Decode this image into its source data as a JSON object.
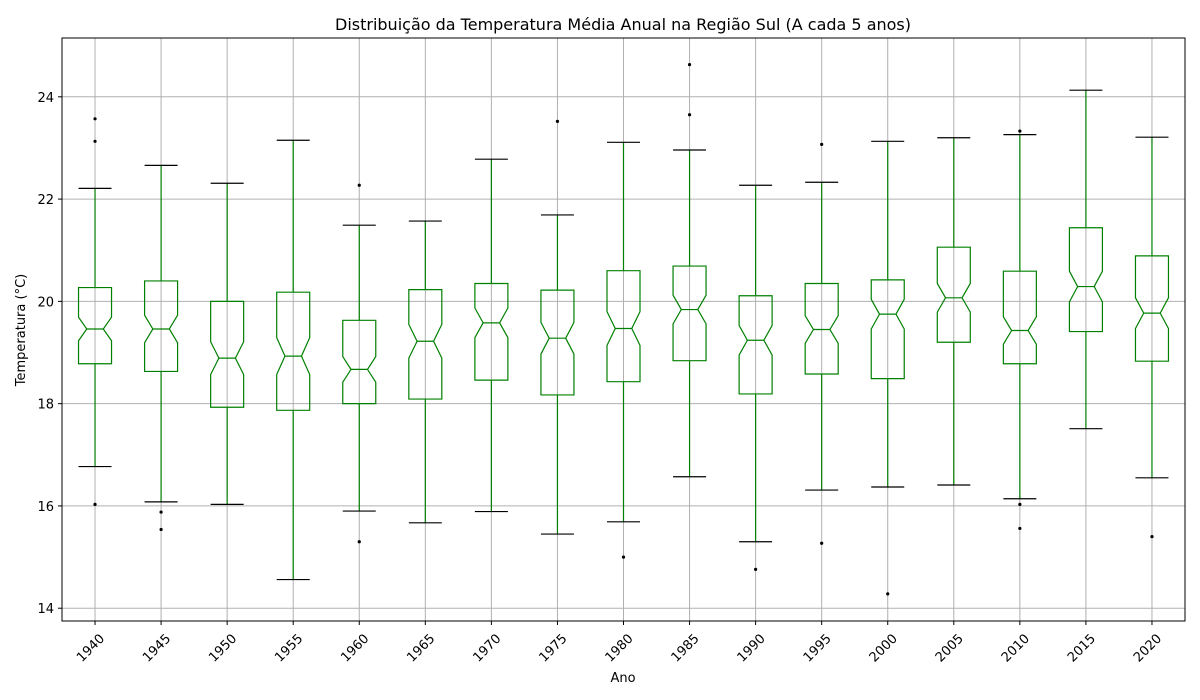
{
  "chart_data": {
    "type": "boxplot",
    "title": "Distribuição da Temperatura Média Anual na Região Sul (A cada 5 anos)",
    "xlabel": "Ano",
    "ylabel": "Temperatura (°C)",
    "ylim": [
      13.75,
      25.15
    ],
    "yticks": [
      14,
      16,
      18,
      20,
      22,
      24
    ],
    "grid": true,
    "notched": true,
    "colors": {
      "box": "#008000",
      "cap": "#000000",
      "flier": "#000000",
      "grid": "#b0b0b0"
    },
    "categories": [
      "1940",
      "1945",
      "1950",
      "1955",
      "1960",
      "1965",
      "1970",
      "1975",
      "1980",
      "1985",
      "1990",
      "1995",
      "2000",
      "2005",
      "2010",
      "2015",
      "2020"
    ],
    "boxes": [
      {
        "whislo": 16.77,
        "q1": 18.78,
        "med": 19.46,
        "q3": 20.27,
        "whishi": 22.21,
        "notch": [
          19.23,
          19.69
        ],
        "fliers": [
          16.03,
          23.13,
          23.57
        ]
      },
      {
        "whislo": 16.08,
        "q1": 18.63,
        "med": 19.46,
        "q3": 20.4,
        "whishi": 22.66,
        "notch": [
          19.19,
          19.73
        ],
        "fliers": [
          15.54,
          15.88
        ]
      },
      {
        "whislo": 16.03,
        "q1": 17.93,
        "med": 18.89,
        "q3": 20.0,
        "whishi": 22.31,
        "notch": [
          18.57,
          19.21
        ],
        "fliers": []
      },
      {
        "whislo": 14.56,
        "q1": 17.87,
        "med": 18.93,
        "q3": 20.18,
        "whishi": 23.15,
        "notch": [
          18.57,
          19.29
        ],
        "fliers": []
      },
      {
        "whislo": 15.9,
        "q1": 18.0,
        "med": 18.67,
        "q3": 19.63,
        "whishi": 21.49,
        "notch": [
          18.42,
          18.92
        ],
        "fliers": [
          15.3,
          22.27
        ]
      },
      {
        "whislo": 15.67,
        "q1": 18.09,
        "med": 19.22,
        "q3": 20.23,
        "whishi": 21.57,
        "notch": [
          18.89,
          19.55
        ],
        "fliers": []
      },
      {
        "whislo": 15.89,
        "q1": 18.46,
        "med": 19.58,
        "q3": 20.35,
        "whishi": 22.78,
        "notch": [
          19.29,
          19.87
        ],
        "fliers": []
      },
      {
        "whislo": 15.45,
        "q1": 18.17,
        "med": 19.28,
        "q3": 20.22,
        "whishi": 21.69,
        "notch": [
          18.97,
          19.59
        ],
        "fliers": [
          23.52
        ]
      },
      {
        "whislo": 15.69,
        "q1": 18.43,
        "med": 19.47,
        "q3": 20.6,
        "whishi": 23.11,
        "notch": [
          19.14,
          19.8
        ],
        "fliers": [
          15.0
        ]
      },
      {
        "whislo": 16.57,
        "q1": 18.84,
        "med": 19.84,
        "q3": 20.69,
        "whishi": 22.96,
        "notch": [
          19.56,
          20.12
        ],
        "fliers": [
          23.65,
          24.63
        ]
      },
      {
        "whislo": 15.3,
        "q1": 18.19,
        "med": 19.24,
        "q3": 20.11,
        "whishi": 22.27,
        "notch": [
          18.95,
          19.53
        ],
        "fliers": [
          14.76
        ]
      },
      {
        "whislo": 16.31,
        "q1": 18.58,
        "med": 19.45,
        "q3": 20.35,
        "whishi": 22.33,
        "notch": [
          19.18,
          19.72
        ],
        "fliers": [
          15.27,
          23.07
        ]
      },
      {
        "whislo": 16.37,
        "q1": 18.49,
        "med": 19.75,
        "q3": 20.42,
        "whishi": 23.13,
        "notch": [
          19.46,
          20.04
        ],
        "fliers": [
          14.28
        ]
      },
      {
        "whislo": 16.41,
        "q1": 19.2,
        "med": 20.07,
        "q3": 21.06,
        "whishi": 23.2,
        "notch": [
          19.79,
          20.35
        ],
        "fliers": []
      },
      {
        "whislo": 16.14,
        "q1": 18.78,
        "med": 19.43,
        "q3": 20.59,
        "whishi": 23.26,
        "notch": [
          19.16,
          19.7
        ],
        "fliers": [
          15.56,
          16.03,
          23.33
        ]
      },
      {
        "whislo": 17.51,
        "q1": 19.41,
        "med": 20.29,
        "q3": 21.44,
        "whishi": 24.13,
        "notch": [
          19.99,
          20.59
        ],
        "fliers": []
      },
      {
        "whislo": 16.55,
        "q1": 18.83,
        "med": 19.77,
        "q3": 20.89,
        "whishi": 23.21,
        "notch": [
          19.47,
          20.07
        ],
        "fliers": [
          15.4
        ]
      }
    ]
  }
}
